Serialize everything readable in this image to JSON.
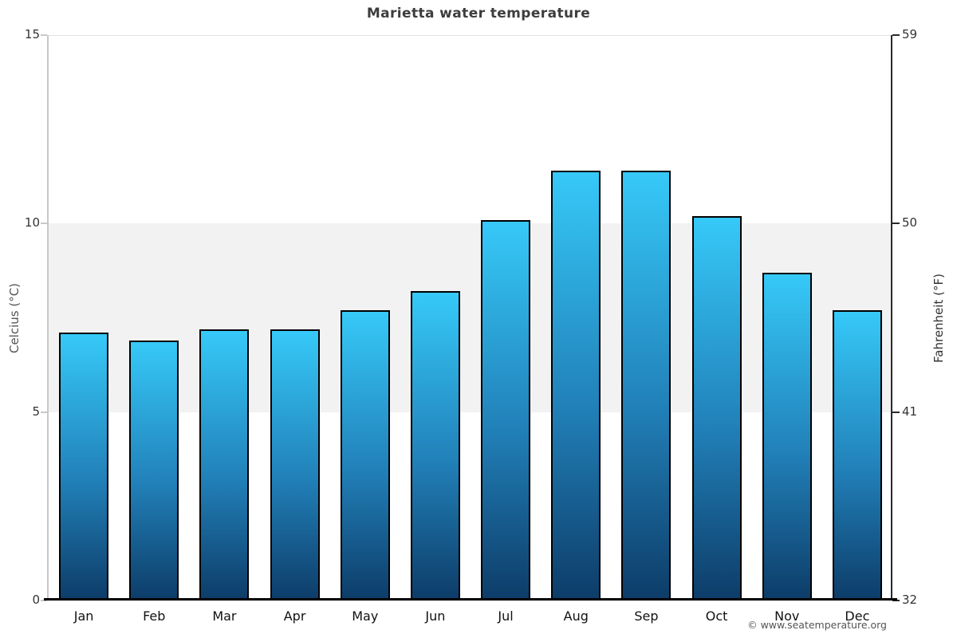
{
  "page": {
    "title": "Marietta water temperature",
    "copyright": "© www.seatemperature.org"
  },
  "chart_data": {
    "type": "bar",
    "title": "Marietta water temperature",
    "categories": [
      "Jan",
      "Feb",
      "Mar",
      "Apr",
      "May",
      "Jun",
      "Jul",
      "Aug",
      "Sep",
      "Oct",
      "Nov",
      "Dec"
    ],
    "values": [
      7.1,
      6.9,
      7.2,
      7.2,
      7.7,
      8.2,
      10.1,
      11.4,
      11.4,
      10.2,
      8.7,
      7.7
    ],
    "unit": "°C",
    "ylabel_left": "Celcius (°C)",
    "ylabel_right": "Fahrenheit (°F)",
    "yticks_left": [
      15,
      10,
      5,
      0
    ],
    "yticks_right": [
      59,
      50,
      41,
      32
    ],
    "ylim": [
      0,
      15
    ],
    "highlight_band_celsius": [
      5,
      10
    ],
    "grid": false,
    "legend": false,
    "colors": {
      "bar_gradient_top": "#36c9f8",
      "bar_gradient_bottom": "#0d3c68",
      "bar_border": "#000000",
      "highlight_band": "#f2f2f2",
      "axis_left": "#c8c8c8",
      "axis_right": "#2a2a2a",
      "axis_bottom": "#000000",
      "title_text": "#3d3d3d"
    }
  }
}
